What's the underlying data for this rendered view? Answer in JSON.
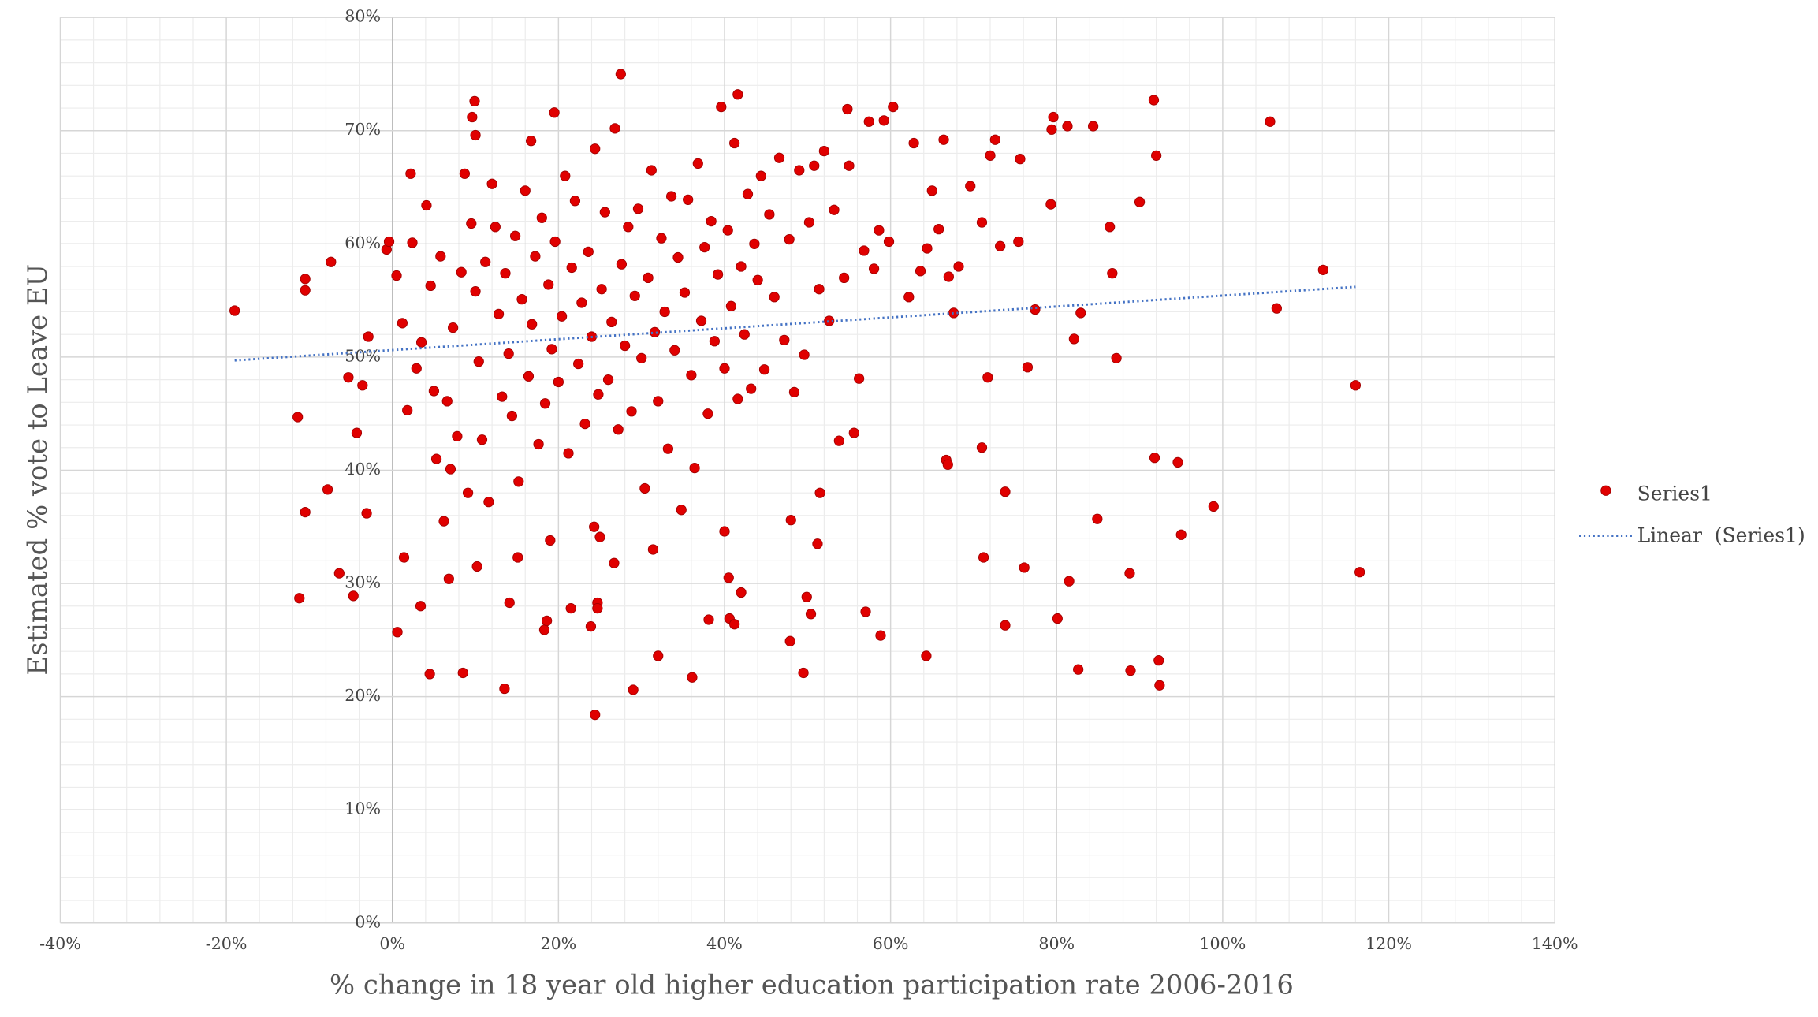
{
  "chart_data": {
    "type": "scatter",
    "x_label": "% change in 18 year old higher education participation rate 2006-2016",
    "y_label": "Estimated % vote to Leave EU",
    "xlim": [
      -40,
      140
    ],
    "ylim": [
      0,
      80
    ],
    "xticks": [
      {
        "value": -40,
        "label": "-40%"
      },
      {
        "value": -20,
        "label": "-20%"
      },
      {
        "value": 0,
        "label": "0%"
      },
      {
        "value": 20,
        "label": "20%"
      },
      {
        "value": 40,
        "label": "40%"
      },
      {
        "value": 60,
        "label": "60%"
      },
      {
        "value": 80,
        "label": "80%"
      },
      {
        "value": 100,
        "label": "100%"
      },
      {
        "value": 120,
        "label": "120%"
      },
      {
        "value": 140,
        "label": "140%"
      }
    ],
    "yticks": [
      {
        "value": 0,
        "label": "0%"
      },
      {
        "value": 10,
        "label": "10%"
      },
      {
        "value": 20,
        "label": "20%"
      },
      {
        "value": 30,
        "label": "30%"
      },
      {
        "value": 40,
        "label": "40%"
      },
      {
        "value": 50,
        "label": "50%"
      },
      {
        "value": 60,
        "label": "60%"
      },
      {
        "value": 70,
        "label": "70%"
      },
      {
        "value": 80,
        "label": "80%"
      }
    ],
    "grid": true,
    "minor_grid": true,
    "legend": "right",
    "series": [
      {
        "name": "Series1",
        "color": "#e00000",
        "marker": "circle",
        "x": [
          -19.0,
          -11.4,
          -10.5,
          -10.5,
          -10.5,
          -11.2,
          -7.4,
          -7.8,
          -6.4,
          -4.7,
          -5.3,
          -4.3,
          -3.6,
          -2.9,
          -3.1,
          -0.7,
          -0.4,
          0.6,
          1.4,
          2.2,
          3.4,
          4.5,
          8.5,
          6.8,
          9.9,
          9.6,
          10.0,
          10.2,
          13.5,
          14.1,
          15.1,
          16.7,
          18.3,
          18.6,
          19.0,
          19.5,
          21.5,
          24.4,
          23.9,
          24.7,
          24.7,
          24.3,
          25.0,
          26.7,
          27.5,
          29.0,
          32.0,
          31.4,
          36.1,
          38.1,
          40.5,
          40.6,
          41.2,
          41.6,
          42.0,
          40.0,
          47.9,
          49.5,
          49.9,
          50.4,
          51.2,
          48.0,
          51.5,
          57.0,
          58.8,
          60.3,
          54.8,
          64.3,
          66.7,
          66.9,
          71.0,
          71.2,
          71.7,
          73.8,
          73.8,
          76.1,
          76.5,
          77.4,
          79.3,
          79.6,
          79.4,
          81.3,
          80.1,
          81.5,
          82.1,
          82.6,
          82.9,
          84.4,
          84.9,
          86.4,
          86.7,
          87.2,
          88.8,
          88.9,
          90.0,
          91.7,
          91.8,
          92.0,
          92.3,
          92.4,
          94.6,
          95.0,
          98.9,
          105.7,
          106.5,
          112.1,
          116.0,
          116.5,
          0.5,
          1.2,
          1.8,
          2.4,
          2.9,
          3.5,
          4.1,
          4.6,
          5.0,
          5.3,
          5.8,
          6.2,
          6.6,
          7.0,
          7.3,
          7.8,
          8.3,
          8.7,
          9.1,
          9.5,
          10.0,
          10.4,
          10.8,
          11.2,
          11.6,
          12.0,
          12.4,
          12.8,
          13.2,
          13.6,
          14.0,
          14.4,
          14.8,
          15.2,
          15.6,
          16.0,
          16.4,
          16.8,
          17.2,
          17.6,
          18.0,
          18.4,
          18.8,
          19.2,
          19.6,
          20.0,
          20.4,
          20.8,
          21.2,
          21.6,
          22.0,
          22.4,
          22.8,
          23.2,
          23.6,
          24.0,
          24.4,
          24.8,
          25.2,
          25.6,
          26.0,
          26.4,
          26.8,
          27.2,
          27.6,
          28.0,
          28.4,
          28.8,
          29.2,
          29.6,
          30.0,
          30.4,
          30.8,
          31.2,
          31.6,
          32.0,
          32.4,
          32.8,
          33.2,
          33.6,
          34.0,
          34.4,
          34.8,
          35.2,
          35.6,
          36.0,
          36.4,
          36.8,
          37.2,
          37.6,
          38.0,
          38.4,
          38.8,
          39.2,
          39.6,
          40.0,
          40.4,
          40.8,
          41.2,
          41.6,
          42.0,
          42.4,
          42.8,
          43.2,
          43.6,
          44.0,
          44.4,
          44.8,
          45.4,
          46.0,
          46.6,
          47.2,
          47.8,
          48.4,
          49.0,
          49.6,
          50.2,
          50.8,
          51.4,
          52.0,
          52.6,
          53.2,
          53.8,
          54.4,
          55.0,
          55.6,
          56.2,
          56.8,
          57.4,
          58.0,
          58.6,
          59.2,
          59.8,
          62.2,
          62.8,
          63.6,
          64.4,
          65.0,
          65.8,
          66.4,
          67.0,
          67.6,
          68.2,
          69.6,
          71.0,
          72.0,
          73.2,
          75.6,
          75.4,
          72.6
        ],
        "values": [
          54.1,
          44.7,
          56.9,
          55.9,
          36.3,
          28.7,
          58.4,
          38.3,
          30.9,
          28.9,
          48.2,
          43.3,
          47.5,
          51.8,
          36.2,
          59.5,
          60.2,
          25.7,
          32.3,
          66.2,
          28.0,
          22.0,
          22.1,
          30.4,
          72.6,
          71.2,
          69.6,
          31.5,
          20.7,
          28.3,
          32.3,
          69.1,
          25.9,
          26.7,
          33.8,
          71.6,
          27.8,
          18.4,
          26.2,
          28.3,
          27.8,
          35.0,
          34.1,
          31.8,
          75.0,
          20.6,
          23.6,
          33.0,
          21.7,
          26.8,
          30.5,
          26.9,
          26.4,
          73.2,
          29.2,
          34.6,
          24.9,
          22.1,
          28.8,
          27.3,
          33.5,
          35.6,
          38.0,
          27.5,
          25.4,
          72.1,
          71.9,
          23.6,
          40.9,
          40.5,
          42.0,
          32.3,
          48.2,
          26.3,
          38.1,
          31.4,
          49.1,
          54.2,
          63.5,
          71.2,
          70.1,
          70.4,
          26.9,
          30.2,
          51.6,
          22.4,
          53.9,
          70.4,
          35.7,
          61.5,
          57.4,
          49.9,
          30.9,
          22.3,
          63.7,
          72.7,
          41.1,
          67.8,
          23.2,
          21.0,
          40.7,
          34.3,
          36.8,
          70.8,
          54.3,
          57.7,
          47.5,
          31.0,
          57.2,
          53.0,
          45.3,
          60.1,
          49.0,
          51.3,
          63.4,
          56.3,
          47.0,
          41.0,
          58.9,
          35.5,
          46.1,
          40.1,
          52.6,
          43.0,
          57.5,
          66.2,
          38.0,
          61.8,
          55.8,
          49.6,
          42.7,
          58.4,
          37.2,
          65.3,
          61.5,
          53.8,
          46.5,
          57.4,
          50.3,
          44.8,
          60.7,
          39.0,
          55.1,
          64.7,
          48.3,
          52.9,
          58.9,
          42.3,
          62.3,
          45.9,
          56.4,
          50.7,
          60.2,
          47.8,
          53.6,
          66.0,
          41.5,
          57.9,
          63.8,
          49.4,
          54.8,
          44.1,
          59.3,
          51.8,
          68.4,
          46.7,
          56.0,
          62.8,
          48.0,
          53.1,
          70.2,
          43.6,
          58.2,
          51.0,
          61.5,
          45.2,
          55.4,
          63.1,
          49.9,
          38.4,
          57.0,
          66.5,
          52.2,
          46.1,
          60.5,
          54.0,
          41.9,
          64.2,
          50.6,
          58.8,
          36.5,
          55.7,
          63.9,
          48.4,
          40.2,
          67.1,
          53.2,
          59.7,
          45.0,
          62.0,
          51.4,
          57.3,
          72.1,
          49.0,
          61.2,
          54.5,
          68.9,
          46.3,
          58.0,
          52.0,
          64.4,
          47.2,
          60.0,
          56.8,
          66.0,
          48.9,
          62.6,
          55.3,
          67.6,
          51.5,
          60.4,
          46.9,
          66.5,
          50.2,
          61.9,
          66.9,
          56.0,
          68.2,
          53.2,
          63.0,
          42.6,
          57.0,
          66.9,
          43.3,
          48.1,
          59.4,
          70.8,
          57.8,
          61.2,
          70.9,
          60.2,
          55.3,
          68.9,
          57.6,
          59.6,
          64.7,
          61.3,
          69.2,
          57.1,
          53.9,
          58.0,
          65.1,
          61.9,
          67.8,
          59.8,
          67.5,
          60.2,
          69.2
        ]
      },
      {
        "name": "Linear  (Series1)",
        "color": "#4472c4",
        "marker": "dotted-line",
        "x": [
          -19,
          116
        ],
        "values": [
          49.7,
          56.2
        ]
      }
    ]
  }
}
